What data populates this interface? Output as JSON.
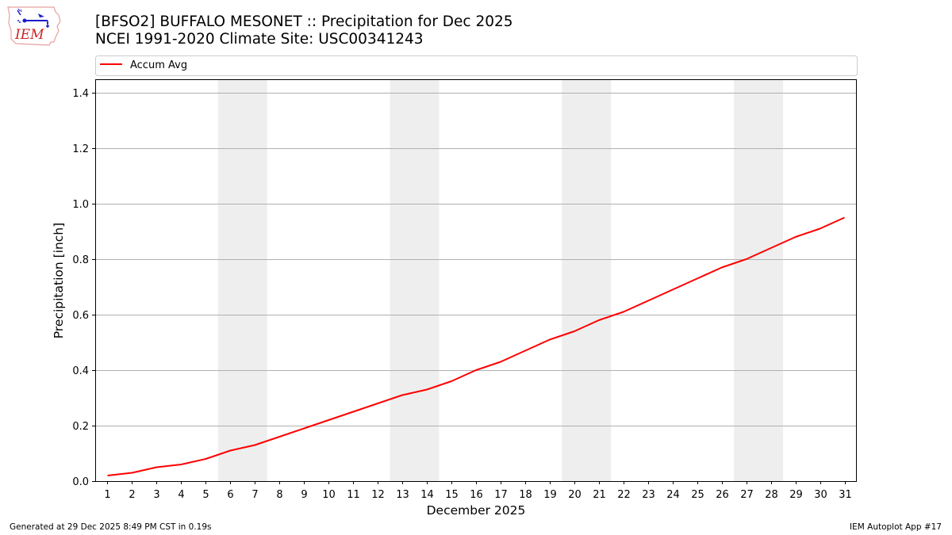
{
  "header": {
    "title_line1": "[BFSO2] BUFFALO MESONET :: Precipitation for Dec 2025",
    "title_line2": "NCEI 1991-2020 Climate Site: USC00341243",
    "logo_text": "IEM"
  },
  "footer": {
    "generated": "Generated at 29 Dec 2025 8:49 PM CST in 0.19s",
    "app": "IEM Autoplot App #17"
  },
  "colors": {
    "series": "#ff0000",
    "weekend_band": "#eeeeee",
    "grid": "#b0b0b0",
    "logo_red": "#cc2222",
    "logo_blue": "#1a1acc"
  },
  "chart_data": {
    "type": "line",
    "title": "[BFSO2] BUFFALO MESONET :: Precipitation for Dec 2025 / NCEI 1991-2020 Climate Site: USC00341243",
    "xlabel": "December 2025",
    "ylabel": "Precipitation [inch]",
    "xlim": [
      0.5,
      31.5
    ],
    "ylim": [
      0,
      1.45
    ],
    "yticks": [
      0.0,
      0.2,
      0.4,
      0.6,
      0.8,
      1.0,
      1.2,
      1.4
    ],
    "ytick_labels": [
      "0.0",
      "0.2",
      "0.4",
      "0.6",
      "0.8",
      "1.0",
      "1.2",
      "1.4"
    ],
    "x": [
      1,
      2,
      3,
      4,
      5,
      6,
      7,
      8,
      9,
      10,
      11,
      12,
      13,
      14,
      15,
      16,
      17,
      18,
      19,
      20,
      21,
      22,
      23,
      24,
      25,
      26,
      27,
      28,
      29,
      30,
      31
    ],
    "xtick_labels": [
      "1",
      "2",
      "3",
      "4",
      "5",
      "6",
      "7",
      "8",
      "9",
      "10",
      "11",
      "12",
      "13",
      "14",
      "15",
      "16",
      "17",
      "18",
      "19",
      "20",
      "21",
      "22",
      "23",
      "24",
      "25",
      "26",
      "27",
      "28",
      "29",
      "30",
      "31"
    ],
    "grid": "horizontal",
    "legend_position": "top, above plot",
    "weekend_shading": [
      [
        5.5,
        7.5
      ],
      [
        12.5,
        14.5
      ],
      [
        19.5,
        21.5
      ],
      [
        26.5,
        28.5
      ]
    ],
    "series": [
      {
        "name": "Accum Avg",
        "color": "#ff0000",
        "values": [
          0.02,
          0.03,
          0.05,
          0.06,
          0.08,
          0.11,
          0.13,
          0.16,
          0.19,
          0.22,
          0.25,
          0.28,
          0.31,
          0.33,
          0.36,
          0.4,
          0.43,
          0.47,
          0.51,
          0.54,
          0.58,
          0.61,
          0.65,
          0.69,
          0.73,
          0.77,
          0.8,
          0.84,
          0.88,
          0.91,
          0.95
        ]
      }
    ]
  }
}
